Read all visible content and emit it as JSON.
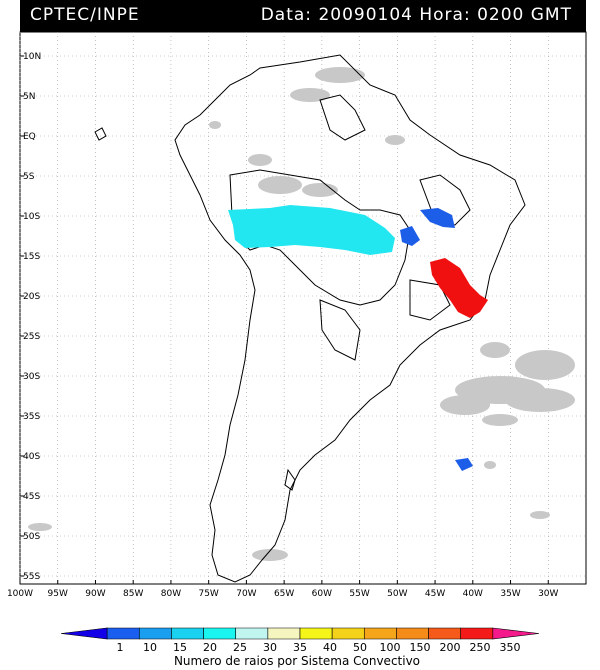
{
  "header": {
    "left": "CPTEC/INPE",
    "right": "Data: 20090104 Hora: 0200 GMT"
  },
  "map": {
    "lon_range": [
      -100,
      -25
    ],
    "lat_range": [
      -56,
      13
    ],
    "lat_ticks": [
      {
        "value": 10,
        "label": "10N"
      },
      {
        "value": 5,
        "label": "5N"
      },
      {
        "value": 0,
        "label": "EQ"
      },
      {
        "value": -5,
        "label": "5S"
      },
      {
        "value": -10,
        "label": "10S"
      },
      {
        "value": -15,
        "label": "15S"
      },
      {
        "value": -20,
        "label": "20S"
      },
      {
        "value": -25,
        "label": "25S"
      },
      {
        "value": -30,
        "label": "30S"
      },
      {
        "value": -35,
        "label": "35S"
      },
      {
        "value": -40,
        "label": "40S"
      },
      {
        "value": -45,
        "label": "45S"
      },
      {
        "value": -50,
        "label": "50S"
      },
      {
        "value": -55,
        "label": "55S"
      }
    ],
    "lon_ticks": [
      {
        "value": -100,
        "label": "100W"
      },
      {
        "value": -95,
        "label": "95W"
      },
      {
        "value": -90,
        "label": "90W"
      },
      {
        "value": -85,
        "label": "85W"
      },
      {
        "value": -80,
        "label": "80W"
      },
      {
        "value": -75,
        "label": "75W"
      },
      {
        "value": -70,
        "label": "70W"
      },
      {
        "value": -65,
        "label": "65W"
      },
      {
        "value": -60,
        "label": "60W"
      },
      {
        "value": -55,
        "label": "55W"
      },
      {
        "value": -50,
        "label": "50W"
      },
      {
        "value": -45,
        "label": "45W"
      },
      {
        "value": -40,
        "label": "40W"
      },
      {
        "value": -35,
        "label": "35W"
      },
      {
        "value": -30,
        "label": "30W"
      }
    ],
    "colors": {
      "land_border": "#000000",
      "grid": "#9a9a9a",
      "cloud": "#c8c8c8",
      "cyan": "#22e6f0",
      "blue": "#1c5ee8",
      "red": "#f01010"
    }
  },
  "colorbar": {
    "title": "Numero de raios por Sistema Convectivo",
    "labels": [
      "1",
      "10",
      "15",
      "20",
      "25",
      "30",
      "35",
      "40",
      "50",
      "100",
      "150",
      "200",
      "250",
      "350"
    ],
    "colors": [
      "#1400e8",
      "#1a5ef0",
      "#1a9ef0",
      "#1ad2f0",
      "#1af5f0",
      "#c0f5f0",
      "#f5f5c0",
      "#f5f51a",
      "#f5d21a",
      "#f5a51a",
      "#f58c1a",
      "#f55a1a",
      "#f51a1a",
      "#f51a8c"
    ]
  }
}
